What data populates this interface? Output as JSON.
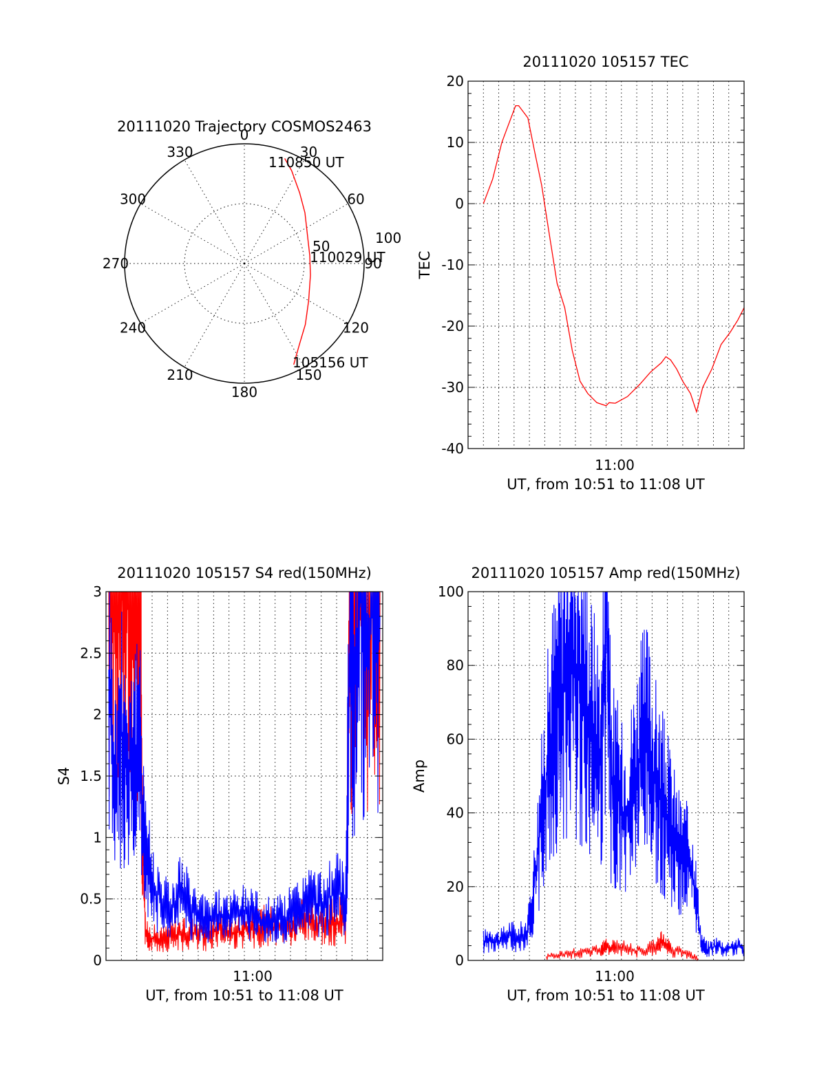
{
  "chart_data": [
    {
      "type": "polar",
      "title": "20111020 Trajectory COSMOS2463",
      "azimuth_labels": [
        "0",
        "30",
        "60",
        "90",
        "120",
        "150",
        "180",
        "210",
        "240",
        "270",
        "300",
        "330"
      ],
      "elevation_labels": [
        "50",
        "100"
      ],
      "annotations": [
        "110850 UT",
        "110029 UT",
        "105156 UT"
      ],
      "trajectory": {
        "color": "#ff0000",
        "points": [
          {
            "az": 154,
            "zen": 94
          },
          {
            "az": 146,
            "zen": 82
          },
          {
            "az": 135,
            "zen": 72
          },
          {
            "az": 120,
            "zen": 62
          },
          {
            "az": 100,
            "zen": 56
          },
          {
            "az": 83,
            "zen": 55
          },
          {
            "az": 65,
            "zen": 58
          },
          {
            "az": 50,
            "zen": 66
          },
          {
            "az": 38,
            "zen": 75
          },
          {
            "az": 27,
            "zen": 87
          },
          {
            "az": 21,
            "zen": 94
          }
        ]
      }
    },
    {
      "type": "line",
      "title": "20111020 105157 TEC",
      "xlabel": "UT, from 10:51 to 11:08 UT",
      "ylabel": "TEC",
      "xlim": [
        10.85,
        11.15
      ],
      "ylim": [
        -40,
        20
      ],
      "yticks": [
        "20",
        "10",
        "0",
        "-10",
        "-20",
        "-30",
        "-40"
      ],
      "xtick_label": "11:00",
      "series": [
        {
          "color": "#ff0000",
          "x": [
            10.8667,
            10.8717,
            10.8767,
            10.8817,
            10.8867,
            10.8917,
            10.8967,
            10.9017,
            10.905,
            10.91,
            10.915,
            10.9217,
            10.93,
            10.9383,
            10.9467,
            10.955,
            10.9633,
            10.9717,
            10.98,
            10.99,
            11.0,
            11.0033,
            11.01,
            11.0233,
            11.0367,
            11.0483,
            11.06,
            11.065,
            11.07,
            11.0767,
            11.0833,
            11.0917,
            11.0983,
            11.105,
            11.115,
            11.125,
            11.135,
            11.1433,
            11.15
          ],
          "y": [
            0,
            2,
            4,
            7,
            10,
            12,
            14,
            16,
            16,
            15,
            14,
            9,
            3,
            -5,
            -13,
            -17,
            -24,
            -29,
            -31,
            -32.5,
            -33,
            -32.5,
            -32.6,
            -31.5,
            -29.5,
            -27.5,
            -26,
            -25,
            -25.5,
            -27,
            -29,
            -31,
            -34,
            -30,
            -27,
            -23,
            -21,
            -19,
            -17
          ]
        }
      ]
    },
    {
      "type": "line",
      "title": "20111020 105157 S4 red(150MHz)",
      "xlabel": "UT, from 10:51 to 11:08 UT",
      "ylabel": "S4",
      "xlim": [
        10.85,
        11.15
      ],
      "ylim": [
        0,
        3
      ],
      "yticks": [
        "3",
        "2.5",
        "2",
        "1.5",
        "1",
        "0.5",
        "0"
      ],
      "xtick_label": "11:00",
      "series": [
        {
          "color": "#ff0000",
          "x": [
            10.853,
            10.86,
            10.867,
            10.873,
            10.88,
            10.887,
            10.89,
            10.893,
            10.9,
            10.91,
            10.92,
            10.93,
            10.94,
            10.95,
            10.96,
            10.97,
            10.98,
            10.99,
            11.0,
            11.01,
            11.02,
            11.03,
            11.04,
            11.05,
            11.06,
            11.07,
            11.08,
            11.09,
            11.1,
            11.11,
            11.115,
            11.118,
            11.125,
            11.132,
            11.14,
            11.147
          ],
          "y": [
            3,
            3,
            3,
            3,
            3,
            3,
            0.9,
            0.2,
            0.18,
            0.17,
            0.2,
            0.22,
            0.2,
            0.25,
            0.2,
            0.27,
            0.24,
            0.22,
            0.25,
            0.25,
            0.28,
            0.27,
            0.3,
            0.25,
            0.3,
            0.32,
            0.3,
            0.32,
            0.3,
            0.35,
            3,
            2.4,
            3,
            2.6,
            3,
            3
          ]
        },
        {
          "color": "#0000ff",
          "x": [
            10.853,
            10.86,
            10.867,
            10.873,
            10.88,
            10.887,
            10.892,
            10.9,
            10.91,
            10.92,
            10.93,
            10.94,
            10.95,
            10.96,
            10.97,
            10.98,
            10.99,
            11.0,
            11.01,
            11.02,
            11.03,
            11.04,
            11.05,
            11.06,
            11.07,
            11.08,
            11.09,
            11.1,
            11.11,
            11.115,
            11.118,
            11.125,
            11.132,
            11.14,
            11.147
          ],
          "y": [
            2.2,
            1.4,
            1.9,
            1.5,
            1.7,
            1.6,
            1.0,
            0.6,
            0.5,
            0.4,
            0.55,
            0.45,
            0.35,
            0.33,
            0.37,
            0.35,
            0.36,
            0.38,
            0.4,
            0.3,
            0.35,
            0.33,
            0.38,
            0.42,
            0.5,
            0.45,
            0.5,
            0.55,
            0.5,
            3,
            2.2,
            3,
            2.5,
            3,
            2.8
          ]
        }
      ]
    },
    {
      "type": "line",
      "title": "20111020 105157 Amp red(150MHz)",
      "xlabel": "UT, from 10:51 to 11:08 UT",
      "ylabel": "Amp",
      "xlim": [
        10.85,
        11.15
      ],
      "ylim": [
        0,
        100
      ],
      "yticks": [
        "100",
        "80",
        "60",
        "40",
        "20",
        "0"
      ],
      "xtick_label": "11:00",
      "series": [
        {
          "color": "#0000ff",
          "x": [
            10.8667,
            10.875,
            10.885,
            10.895,
            10.905,
            10.915,
            10.9217,
            10.9283,
            10.935,
            10.9417,
            10.9483,
            10.955,
            10.9617,
            10.968,
            10.975,
            10.9817,
            10.988,
            10.995,
            11.0,
            11.005,
            11.0117,
            11.018,
            11.025,
            11.0317,
            11.038,
            11.045,
            11.0517,
            11.058,
            11.065,
            11.0717,
            11.0783,
            11.085,
            11.0917,
            11.0967,
            11.1033,
            11.11,
            11.12,
            11.13,
            11.14,
            11.15
          ],
          "y": [
            5,
            6,
            5,
            7,
            6,
            8,
            20,
            35,
            50,
            62,
            70,
            78,
            85,
            80,
            75,
            65,
            60,
            55,
            98,
            50,
            45,
            40,
            42,
            50,
            55,
            58,
            50,
            45,
            40,
            35,
            30,
            28,
            25,
            20,
            5,
            3,
            4,
            3,
            4,
            3
          ]
        },
        {
          "color": "#ff0000",
          "x": [
            10.935,
            10.95,
            10.965,
            10.98,
            10.995,
            11.0,
            11.01,
            11.025,
            11.04,
            11.055,
            11.06,
            11.07,
            11.085,
            11.1
          ],
          "y": [
            1,
            1.5,
            2,
            2.5,
            3,
            3.5,
            4,
            3,
            2.5,
            4,
            5,
            3,
            2,
            0.5
          ]
        }
      ]
    }
  ]
}
